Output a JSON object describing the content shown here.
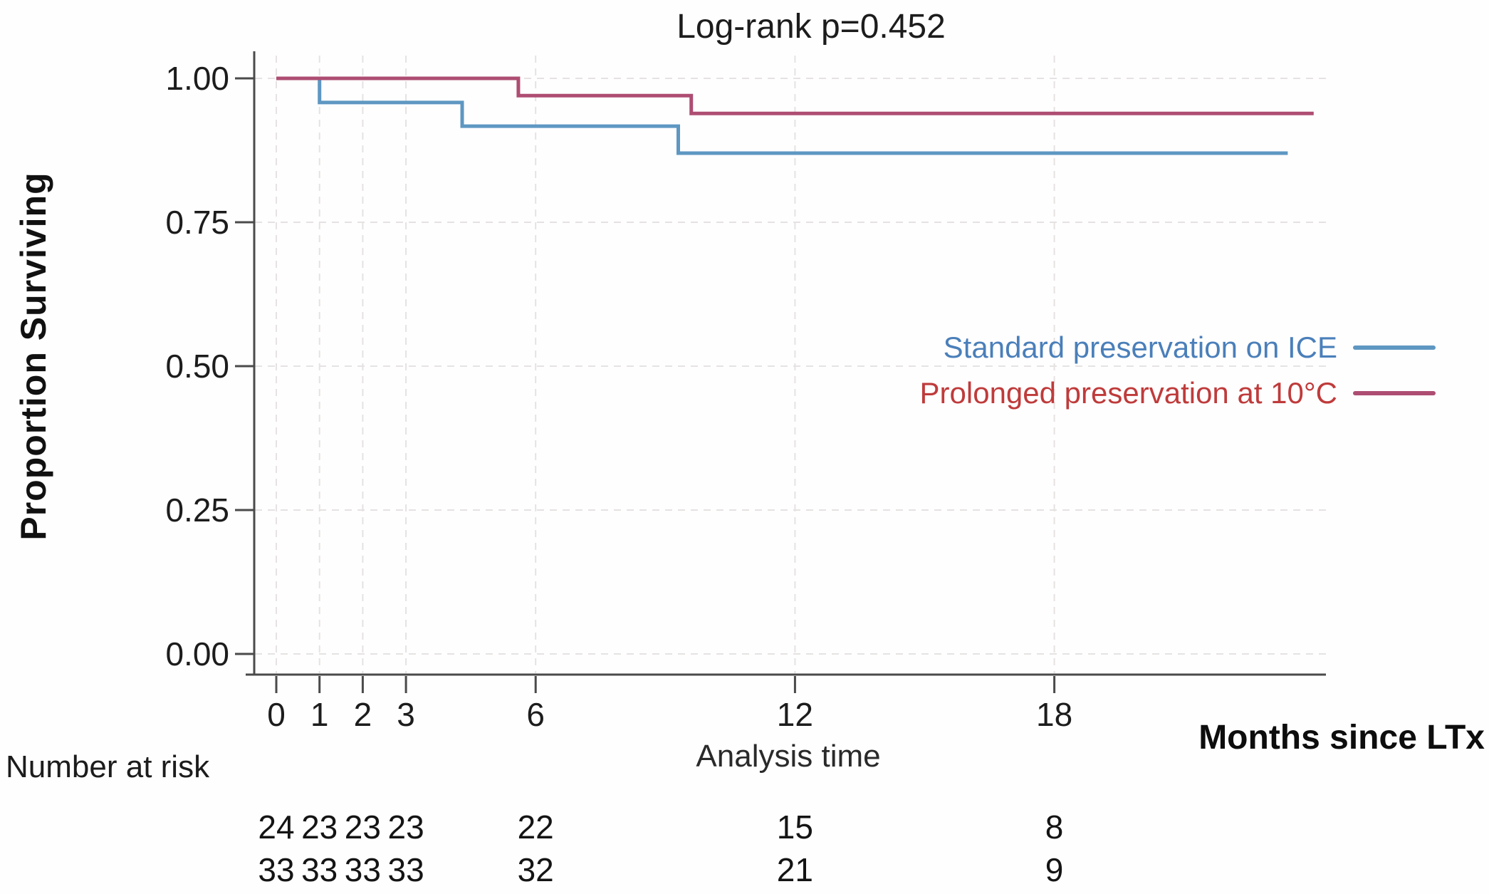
{
  "figure": {
    "title": "Log-rank p=0.452",
    "ylabel": "Proportion Surviving",
    "xlabel": "Analysis time",
    "x_axis_unit": "Months since LTx",
    "risk_label": "Number at risk"
  },
  "chart_data": {
    "type": "line",
    "subtype": "kaplan-meier-step-survival",
    "title": "Log-rank p=0.452",
    "xlabel": "Analysis time",
    "ylabel": "Proportion Surviving",
    "x_axis_unit_label": "Months since LTx",
    "xticks": [
      0,
      1,
      2,
      3,
      6,
      12,
      18
    ],
    "ytick_labels": [
      "0.00",
      "0.25",
      "0.50",
      "0.75",
      "1.00"
    ],
    "ytick_values": [
      0,
      0.25,
      0.5,
      0.75,
      1
    ],
    "xlim": [
      0,
      24.5
    ],
    "ylim": [
      0,
      1
    ],
    "grid": true,
    "legend_position": "middle-right",
    "axis_color": "#4a4a4a",
    "grid_color": "#e6e2e2",
    "series": [
      {
        "name": "Standard preservation on ICE",
        "color": "#5e97c2",
        "text_color": "#4a7fba",
        "points": [
          [
            0,
            1.0
          ],
          [
            1,
            1.0
          ],
          [
            1,
            0.958
          ],
          [
            4.3,
            0.958
          ],
          [
            4.3,
            0.917
          ],
          [
            9.3,
            0.917
          ],
          [
            9.3,
            0.87
          ],
          [
            23.4,
            0.87
          ]
        ]
      },
      {
        "name": "Prolonged preservation at 10°C",
        "color": "#ae4d72",
        "text_color": "#bf3b3b",
        "points": [
          [
            0,
            1.0
          ],
          [
            5.6,
            1.0
          ],
          [
            5.6,
            0.97
          ],
          [
            9.6,
            0.97
          ],
          [
            9.6,
            0.939
          ],
          [
            24,
            0.939
          ]
        ]
      }
    ],
    "number_at_risk": {
      "label": "Number at risk",
      "time_points": [
        0,
        1,
        2,
        3,
        6,
        12,
        18
      ],
      "rows": [
        {
          "series": "Standard preservation on ICE",
          "counts": [
            24,
            23,
            23,
            23,
            22,
            15,
            8
          ]
        },
        {
          "series": "Prolonged preservation at 10°C",
          "counts": [
            33,
            33,
            33,
            33,
            32,
            21,
            9
          ]
        }
      ]
    }
  }
}
